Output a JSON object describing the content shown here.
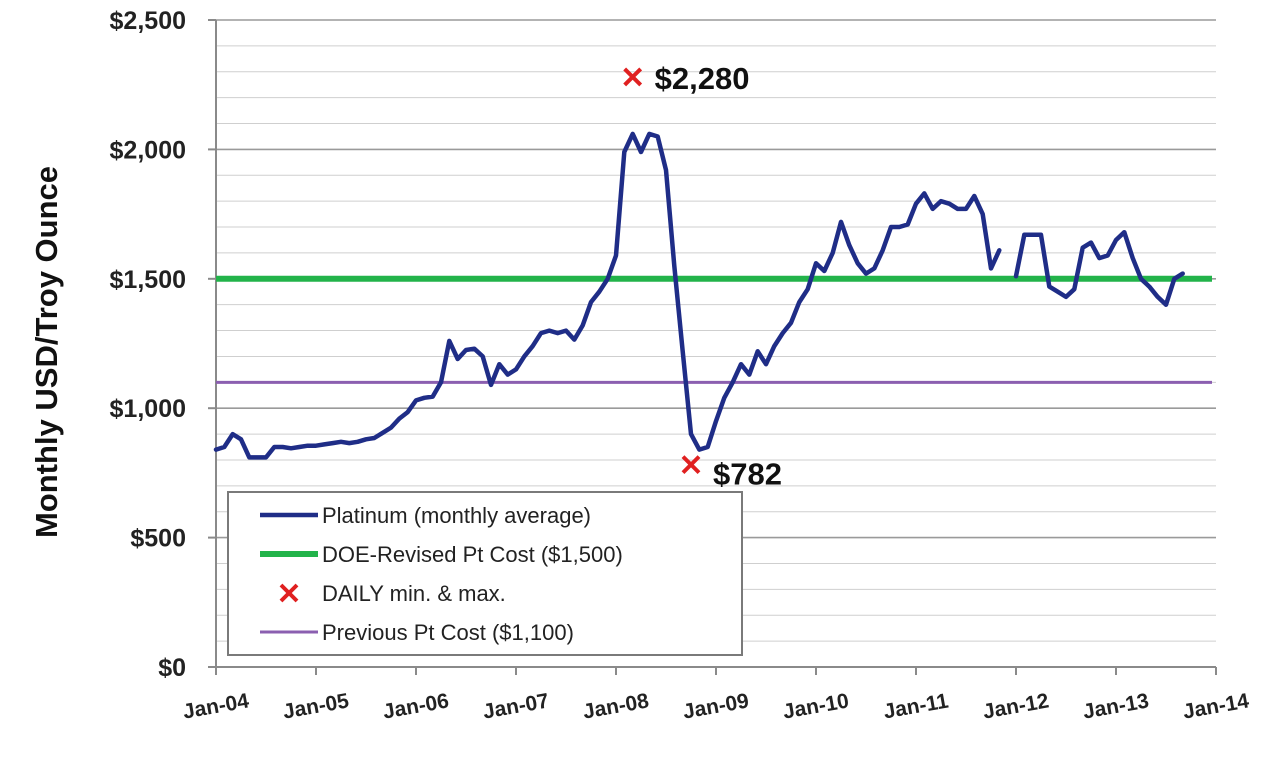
{
  "chart_data": {
    "type": "line",
    "title": "",
    "ylabel": "Monthly USD/Troy Ounce",
    "xlabel": "",
    "ylim": [
      0,
      2500
    ],
    "xlim": [
      "Jan-04",
      "Jan-14"
    ],
    "y_ticks": [
      "$0",
      "$500",
      "$1,000",
      "$1,500",
      "$2,000",
      "$2,500"
    ],
    "x_ticks": [
      "Jan-04",
      "Jan-05",
      "Jan-06",
      "Jan-07",
      "Jan-08",
      "Jan-09",
      "Jan-10",
      "Jan-11",
      "Jan-12",
      "Jan-13",
      "Jan-14"
    ],
    "grid": true,
    "legend_position": "bottom-left",
    "series": [
      {
        "name": "Platinum (monthly average)",
        "color": "#1f2d87",
        "points": [
          [
            "2004-01",
            840
          ],
          [
            "2004-02",
            850
          ],
          [
            "2004-03",
            900
          ],
          [
            "2004-04",
            880
          ],
          [
            "2004-05",
            810
          ],
          [
            "2004-06",
            810
          ],
          [
            "2004-07",
            810
          ],
          [
            "2004-08",
            850
          ],
          [
            "2004-09",
            850
          ],
          [
            "2004-10",
            845
          ],
          [
            "2004-11",
            850
          ],
          [
            "2004-12",
            855
          ],
          [
            "2005-01",
            855
          ],
          [
            "2005-02",
            860
          ],
          [
            "2005-03",
            865
          ],
          [
            "2005-04",
            870
          ],
          [
            "2005-05",
            865
          ],
          [
            "2005-06",
            870
          ],
          [
            "2005-07",
            880
          ],
          [
            "2005-08",
            885
          ],
          [
            "2005-09",
            905
          ],
          [
            "2005-10",
            925
          ],
          [
            "2005-11",
            960
          ],
          [
            "2005-12",
            985
          ],
          [
            "2006-01",
            1030
          ],
          [
            "2006-02",
            1040
          ],
          [
            "2006-03",
            1045
          ],
          [
            "2006-04",
            1100
          ],
          [
            "2006-05",
            1260
          ],
          [
            "2006-06",
            1190
          ],
          [
            "2006-07",
            1225
          ],
          [
            "2006-08",
            1230
          ],
          [
            "2006-09",
            1200
          ],
          [
            "2006-10",
            1090
          ],
          [
            "2006-11",
            1170
          ],
          [
            "2006-12",
            1130
          ],
          [
            "2007-01",
            1150
          ],
          [
            "2007-02",
            1200
          ],
          [
            "2007-03",
            1240
          ],
          [
            "2007-04",
            1290
          ],
          [
            "2007-05",
            1300
          ],
          [
            "2007-06",
            1290
          ],
          [
            "2007-07",
            1300
          ],
          [
            "2007-08",
            1265
          ],
          [
            "2007-09",
            1320
          ],
          [
            "2007-10",
            1410
          ],
          [
            "2007-11",
            1450
          ],
          [
            "2007-12",
            1500
          ],
          [
            "2008-01",
            1590
          ],
          [
            "2008-02",
            1990
          ],
          [
            "2008-03",
            2060
          ],
          [
            "2008-04",
            1990
          ],
          [
            "2008-05",
            2060
          ],
          [
            "2008-06",
            2050
          ],
          [
            "2008-07",
            1920
          ],
          [
            "2008-08",
            1550
          ],
          [
            "2008-09",
            1220
          ],
          [
            "2008-10",
            900
          ],
          [
            "2008-11",
            840
          ],
          [
            "2008-12",
            850
          ],
          [
            "2009-01",
            950
          ],
          [
            "2009-02",
            1040
          ],
          [
            "2009-03",
            1100
          ],
          [
            "2009-04",
            1170
          ],
          [
            "2009-05",
            1130
          ],
          [
            "2009-06",
            1220
          ],
          [
            "2009-07",
            1170
          ],
          [
            "2009-08",
            1240
          ],
          [
            "2009-09",
            1290
          ],
          [
            "2009-10",
            1330
          ],
          [
            "2009-11",
            1410
          ],
          [
            "2009-12",
            1460
          ],
          [
            "2010-01",
            1560
          ],
          [
            "2010-02",
            1530
          ],
          [
            "2010-03",
            1600
          ],
          [
            "2010-04",
            1720
          ],
          [
            "2010-05",
            1630
          ],
          [
            "2010-06",
            1560
          ],
          [
            "2010-07",
            1520
          ],
          [
            "2010-08",
            1540
          ],
          [
            "2010-09",
            1610
          ],
          [
            "2010-10",
            1700
          ],
          [
            "2010-11",
            1700
          ],
          [
            "2010-12",
            1710
          ],
          [
            "2011-01",
            1790
          ],
          [
            "2011-02",
            1830
          ],
          [
            "2011-03",
            1770
          ],
          [
            "2011-04",
            1800
          ],
          [
            "2011-05",
            1790
          ],
          [
            "2011-06",
            1770
          ],
          [
            "2011-07",
            1770
          ],
          [
            "2011-08",
            1820
          ],
          [
            "2011-09",
            1750
          ],
          [
            "2011-10",
            1540
          ],
          [
            "2011-11",
            1610
          ],
          null,
          [
            "2012-01",
            1510
          ],
          [
            "2012-02",
            1670
          ],
          [
            "2012-03",
            1670
          ],
          [
            "2012-04",
            1670
          ],
          [
            "2012-05",
            1470
          ],
          [
            "2012-06",
            1450
          ],
          [
            "2012-07",
            1430
          ],
          [
            "2012-08",
            1460
          ],
          [
            "2012-09",
            1620
          ],
          [
            "2012-10",
            1640
          ],
          [
            "2012-11",
            1580
          ],
          [
            "2012-12",
            1590
          ],
          [
            "2013-01",
            1650
          ],
          [
            "2013-02",
            1680
          ],
          [
            "2013-03",
            1580
          ],
          [
            "2013-04",
            1500
          ],
          [
            "2013-05",
            1470
          ],
          [
            "2013-06",
            1430
          ],
          [
            "2013-07",
            1400
          ],
          [
            "2013-08",
            1500
          ],
          [
            "2013-09",
            1520
          ]
        ]
      },
      {
        "name": "DOE-Revised Pt Cost ($1,500)",
        "color": "#22b34a",
        "value": 1500
      },
      {
        "name": "Previous Pt Cost ($1,100)",
        "color": "#8b5fb0",
        "value": 1100
      },
      {
        "name": "DAILY min. & max.",
        "color": "#e02020",
        "points": [
          {
            "x": "2008-03",
            "y": 2280,
            "label": "$2,280"
          },
          {
            "x": "2008-10",
            "y": 782,
            "label": "$782"
          }
        ]
      }
    ]
  }
}
